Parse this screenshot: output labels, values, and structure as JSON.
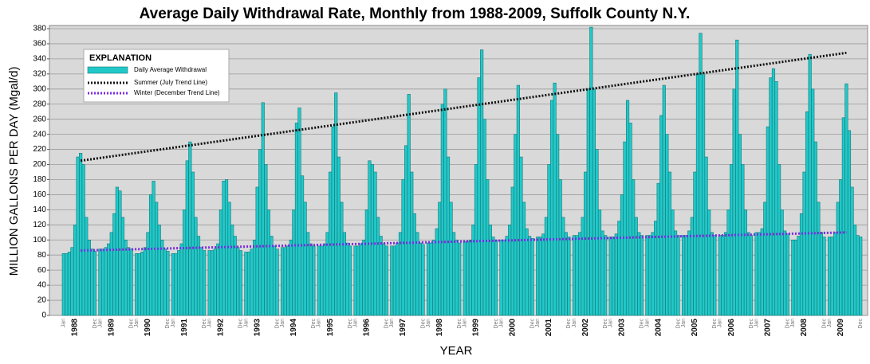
{
  "chart_data": {
    "type": "monthly-bar",
    "title": "Average Daily Withdrawal Rate, Monthly from 1988-2009, Suffolk County N.Y.",
    "y_label": "MILLION GALLONS PER DAY (Mgal/d)",
    "x_label": "YEAR",
    "categories": [
      "1988",
      "1989",
      "1990",
      "1991",
      "1992",
      "1993",
      "1994",
      "1995",
      "1996",
      "1997",
      "1998",
      "1999",
      "2000",
      "2001",
      "2002",
      "2003",
      "2004",
      "2005",
      "2006",
      "2007",
      "2008",
      "2009"
    ],
    "month_labels": [
      "Jan",
      "Dec"
    ],
    "series": [
      {
        "name": "Daily Average Withdrawal",
        "color": "#22c8c8",
        "values": [
          [
            82,
            82,
            84,
            90,
            120,
            210,
            215,
            200,
            130,
            100,
            88,
            85
          ],
          [
            88,
            88,
            90,
            95,
            110,
            135,
            170,
            165,
            130,
            100,
            90,
            88
          ],
          [
            82,
            82,
            84,
            90,
            110,
            160,
            178,
            150,
            120,
            100,
            88,
            85
          ],
          [
            82,
            82,
            86,
            95,
            140,
            205,
            230,
            190,
            130,
            105,
            90,
            86
          ],
          [
            86,
            86,
            88,
            95,
            140,
            178,
            180,
            150,
            120,
            105,
            90,
            86
          ],
          [
            84,
            84,
            88,
            100,
            170,
            220,
            282,
            200,
            140,
            105,
            92,
            88
          ],
          [
            90,
            90,
            92,
            100,
            140,
            255,
            275,
            185,
            150,
            110,
            95,
            92
          ],
          [
            92,
            92,
            95,
            110,
            190,
            250,
            295,
            210,
            150,
            110,
            96,
            92
          ],
          [
            92,
            92,
            95,
            100,
            140,
            205,
            200,
            190,
            130,
            105,
            95,
            92
          ],
          [
            92,
            92,
            96,
            110,
            180,
            225,
            293,
            190,
            135,
            110,
            96,
            94
          ],
          [
            96,
            96,
            100,
            115,
            150,
            280,
            300,
            210,
            150,
            110,
            100,
            96
          ],
          [
            98,
            98,
            100,
            120,
            200,
            315,
            352,
            260,
            180,
            120,
            104,
            100
          ],
          [
            100,
            100,
            105,
            120,
            170,
            240,
            305,
            210,
            150,
            115,
            105,
            102
          ],
          [
            104,
            104,
            108,
            130,
            200,
            285,
            308,
            240,
            180,
            130,
            110,
            104
          ],
          [
            106,
            106,
            110,
            130,
            190,
            300,
            382,
            300,
            220,
            140,
            112,
            106
          ],
          [
            104,
            104,
            108,
            125,
            160,
            230,
            285,
            255,
            180,
            130,
            110,
            106
          ],
          [
            106,
            106,
            110,
            125,
            175,
            265,
            305,
            240,
            190,
            140,
            112,
            106
          ],
          [
            106,
            106,
            112,
            130,
            190,
            320,
            374,
            320,
            210,
            140,
            110,
            106
          ],
          [
            106,
            106,
            110,
            140,
            200,
            300,
            365,
            240,
            200,
            140,
            110,
            106
          ],
          [
            110,
            110,
            115,
            150,
            250,
            315,
            327,
            310,
            200,
            140,
            112,
            108
          ],
          [
            100,
            100,
            105,
            135,
            190,
            270,
            346,
            300,
            230,
            150,
            110,
            104
          ],
          [
            104,
            104,
            110,
            150,
            180,
            262,
            307,
            245,
            170,
            120,
            106,
            104
          ]
        ]
      }
    ],
    "trend_lines": [
      {
        "name": "Summer (July Trend Line)",
        "color": "#111111",
        "values": [
          205,
          348
        ]
      },
      {
        "name": "Winter  (December Trend Line)",
        "color": "#7a2be0",
        "values": [
          86,
          110
        ]
      }
    ],
    "legend_title": "EXPLANATION",
    "ylim": [
      0,
      380
    ],
    "yticks": [
      0,
      20,
      40,
      60,
      80,
      100,
      120,
      140,
      160,
      180,
      200,
      220,
      240,
      260,
      280,
      300,
      320,
      340,
      360,
      380
    ],
    "grid": true
  }
}
